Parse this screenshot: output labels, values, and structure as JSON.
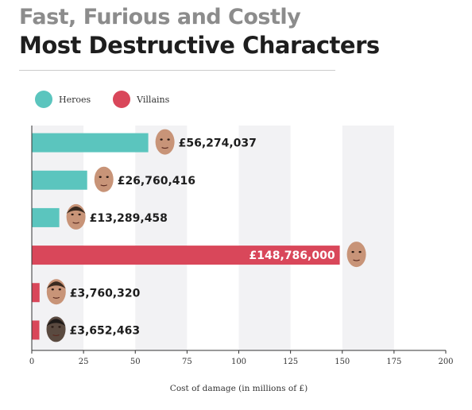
{
  "title_line1": "Fast, Furious and Costly",
  "title_line2": "Most Destructive Characters",
  "legend": [
    {
      "label": "Heroes",
      "color": "#5bc5be"
    },
    {
      "label": "Villains",
      "color": "#d9475a"
    }
  ],
  "chart_data": {
    "type": "bar",
    "orientation": "horizontal",
    "xlabel": "Cost of damage (in millions of £)",
    "xlim": [
      0,
      200
    ],
    "xticks": [
      0,
      25,
      50,
      75,
      100,
      125,
      150,
      175,
      200
    ],
    "grid": "alternating vertical bands",
    "legend_placement": "top-left",
    "bars": [
      {
        "value": 56.274037,
        "label": "£56,274,037",
        "group": "Heroes",
        "face_icon": "bald-man-face-icon"
      },
      {
        "value": 26.760416,
        "label": "£26,760,416",
        "group": "Heroes",
        "face_icon": "bald-man-face-icon"
      },
      {
        "value": 13.289458,
        "label": "£13,289,458",
        "group": "Heroes",
        "face_icon": "man-face-icon"
      },
      {
        "value": 148.786,
        "label": "£148,786,000",
        "group": "Villains",
        "face_icon": "bald-man-face-icon"
      },
      {
        "value": 3.76032,
        "label": "£3,760,320",
        "group": "Villains",
        "face_icon": "man-face-icon"
      },
      {
        "value": 3.652463,
        "label": "£3,652,463",
        "group": "Villains",
        "face_icon": "dark-man-face-icon"
      }
    ]
  }
}
